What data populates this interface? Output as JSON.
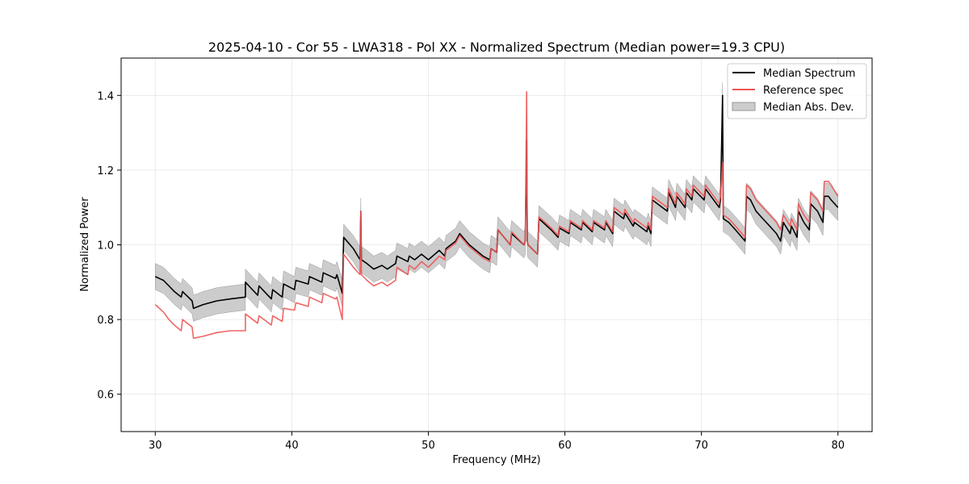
{
  "chart_data": {
    "type": "line",
    "title": "2025-04-10 - Cor 55 - LWA318 - Pol XX - Normalized Spectrum (Median power=19.3 CPU)",
    "xlabel": "Frequency (MHz)",
    "ylabel": "Normalized Power",
    "xlim": [
      27.5,
      82.5
    ],
    "ylim": [
      0.5,
      1.5
    ],
    "xticks": [
      30,
      40,
      50,
      60,
      70,
      80
    ],
    "yticks": [
      0.6,
      0.8,
      1.0,
      1.2,
      1.4
    ],
    "grid": true,
    "legend_position": "top-right",
    "series": [
      {
        "name": "Median Spectrum",
        "color": "#000000",
        "x": [
          30.0,
          30.3,
          30.6,
          31.0,
          31.4,
          31.9,
          32.0,
          32.7,
          32.8,
          33.5,
          34.5,
          35.5,
          36.6,
          36.6,
          37.5,
          37.6,
          38.5,
          38.6,
          39.3,
          39.4,
          40.2,
          40.3,
          41.2,
          41.3,
          42.2,
          42.3,
          43.2,
          43.3,
          43.7,
          43.8,
          44.5,
          45.0,
          45.05,
          45.1,
          45.5,
          46.0,
          46.6,
          47.0,
          47.6,
          47.7,
          48.5,
          48.6,
          49.0,
          49.5,
          50.0,
          50.8,
          51.2,
          51.3,
          52.0,
          52.3,
          53.0,
          54.0,
          54.5,
          54.6,
          55.0,
          55.1,
          56.0,
          56.1,
          57.0,
          57.1,
          57.2,
          57.25,
          57.3,
          58.0,
          58.1,
          59.0,
          59.5,
          59.6,
          60.3,
          60.4,
          61.2,
          61.3,
          62.0,
          62.1,
          62.9,
          63.0,
          63.5,
          63.6,
          64.3,
          64.4,
          65.0,
          65.1,
          66.0,
          66.1,
          66.3,
          66.4,
          67.5,
          67.6,
          68.1,
          68.2,
          68.8,
          68.9,
          69.3,
          69.4,
          70.2,
          70.3,
          71.3,
          71.4,
          71.55,
          71.6,
          72.0,
          72.5,
          73.2,
          73.3,
          73.6,
          74.0,
          74.5,
          75.0,
          75.5,
          75.8,
          76.0,
          76.5,
          76.6,
          77.0,
          77.1,
          77.5,
          77.9,
          78.0,
          78.5,
          78.9,
          79.0,
          79.3,
          79.5,
          80.0
        ],
        "y": [
          0.915,
          0.91,
          0.905,
          0.89,
          0.875,
          0.86,
          0.875,
          0.85,
          0.83,
          0.84,
          0.85,
          0.855,
          0.86,
          0.9,
          0.865,
          0.89,
          0.855,
          0.88,
          0.86,
          0.895,
          0.88,
          0.905,
          0.895,
          0.915,
          0.9,
          0.925,
          0.91,
          0.92,
          0.87,
          1.02,
          0.99,
          0.96,
          1.09,
          0.96,
          0.95,
          0.935,
          0.945,
          0.935,
          0.95,
          0.97,
          0.955,
          0.97,
          0.96,
          0.975,
          0.96,
          0.985,
          0.97,
          0.99,
          1.01,
          1.03,
          1.0,
          0.97,
          0.96,
          0.99,
          0.98,
          1.04,
          1.0,
          1.03,
          1.0,
          1.01,
          1.28,
          1.01,
          1.0,
          0.975,
          1.07,
          1.04,
          1.02,
          1.045,
          1.03,
          1.06,
          1.04,
          1.06,
          1.035,
          1.06,
          1.04,
          1.06,
          1.03,
          1.09,
          1.07,
          1.085,
          1.05,
          1.06,
          1.035,
          1.05,
          1.03,
          1.12,
          1.09,
          1.14,
          1.1,
          1.13,
          1.1,
          1.14,
          1.12,
          1.15,
          1.12,
          1.15,
          1.1,
          1.12,
          1.4,
          1.07,
          1.06,
          1.04,
          1.01,
          1.13,
          1.12,
          1.09,
          1.07,
          1.05,
          1.03,
          1.01,
          1.06,
          1.03,
          1.05,
          1.02,
          1.09,
          1.06,
          1.04,
          1.11,
          1.09,
          1.06,
          1.13,
          1.13,
          1.12,
          1.1
        ]
      },
      {
        "name": "Reference spec",
        "color": "#ee5555",
        "x": [
          30.0,
          30.3,
          30.6,
          31.0,
          31.4,
          31.9,
          32.0,
          32.7,
          32.8,
          33.5,
          34.5,
          35.5,
          36.6,
          36.6,
          37.5,
          37.6,
          38.5,
          38.6,
          39.3,
          39.4,
          40.2,
          40.3,
          41.2,
          41.3,
          42.2,
          42.3,
          43.2,
          43.3,
          43.7,
          43.8,
          44.5,
          45.0,
          45.05,
          45.1,
          45.5,
          46.0,
          46.6,
          47.0,
          47.6,
          47.7,
          48.5,
          48.6,
          49.0,
          49.5,
          50.0,
          50.8,
          51.2,
          51.3,
          52.0,
          52.3,
          53.0,
          54.0,
          54.5,
          54.6,
          55.0,
          55.1,
          56.0,
          56.1,
          57.0,
          57.1,
          57.2,
          57.25,
          57.3,
          58.0,
          58.1,
          59.0,
          59.5,
          59.6,
          60.3,
          60.4,
          61.2,
          61.3,
          62.0,
          62.1,
          62.9,
          63.0,
          63.5,
          63.6,
          64.3,
          64.4,
          65.0,
          65.1,
          66.0,
          66.1,
          66.3,
          66.4,
          67.5,
          67.6,
          68.1,
          68.2,
          68.8,
          68.9,
          69.3,
          69.4,
          70.2,
          70.3,
          71.3,
          71.4,
          71.55,
          71.6,
          72.0,
          72.5,
          73.2,
          73.3,
          73.6,
          74.0,
          74.5,
          75.0,
          75.5,
          75.8,
          76.0,
          76.5,
          76.6,
          77.0,
          77.1,
          77.5,
          77.9,
          78.0,
          78.5,
          78.9,
          79.0,
          79.3,
          79.5,
          80.0
        ],
        "y": [
          0.84,
          0.83,
          0.82,
          0.8,
          0.785,
          0.77,
          0.8,
          0.78,
          0.75,
          0.755,
          0.765,
          0.77,
          0.77,
          0.815,
          0.79,
          0.81,
          0.785,
          0.81,
          0.795,
          0.83,
          0.825,
          0.845,
          0.835,
          0.86,
          0.845,
          0.87,
          0.855,
          0.86,
          0.8,
          0.975,
          0.94,
          0.92,
          1.09,
          0.92,
          0.905,
          0.89,
          0.9,
          0.89,
          0.905,
          0.94,
          0.92,
          0.945,
          0.935,
          0.955,
          0.94,
          0.97,
          0.96,
          0.985,
          1.005,
          1.025,
          0.995,
          0.965,
          0.955,
          0.99,
          0.98,
          1.04,
          1.0,
          1.035,
          1.0,
          1.01,
          1.41,
          1.01,
          1.0,
          0.975,
          1.075,
          1.045,
          1.025,
          1.05,
          1.035,
          1.065,
          1.045,
          1.065,
          1.04,
          1.065,
          1.045,
          1.065,
          1.035,
          1.1,
          1.08,
          1.095,
          1.06,
          1.07,
          1.045,
          1.06,
          1.04,
          1.13,
          1.1,
          1.15,
          1.11,
          1.14,
          1.11,
          1.15,
          1.13,
          1.16,
          1.13,
          1.16,
          1.11,
          1.13,
          1.22,
          1.08,
          1.07,
          1.05,
          1.02,
          1.16,
          1.15,
          1.12,
          1.1,
          1.08,
          1.06,
          1.04,
          1.08,
          1.05,
          1.07,
          1.04,
          1.11,
          1.08,
          1.06,
          1.14,
          1.12,
          1.09,
          1.17,
          1.17,
          1.16,
          1.13
        ]
      }
    ],
    "band": {
      "name": "Median Abs. Dev.",
      "color": "#999999",
      "half_width_low_freq": 0.035,
      "half_width_high_freq": 0.035
    },
    "legend": [
      "Median Spectrum",
      "Reference spec",
      "Median Abs. Dev."
    ]
  }
}
